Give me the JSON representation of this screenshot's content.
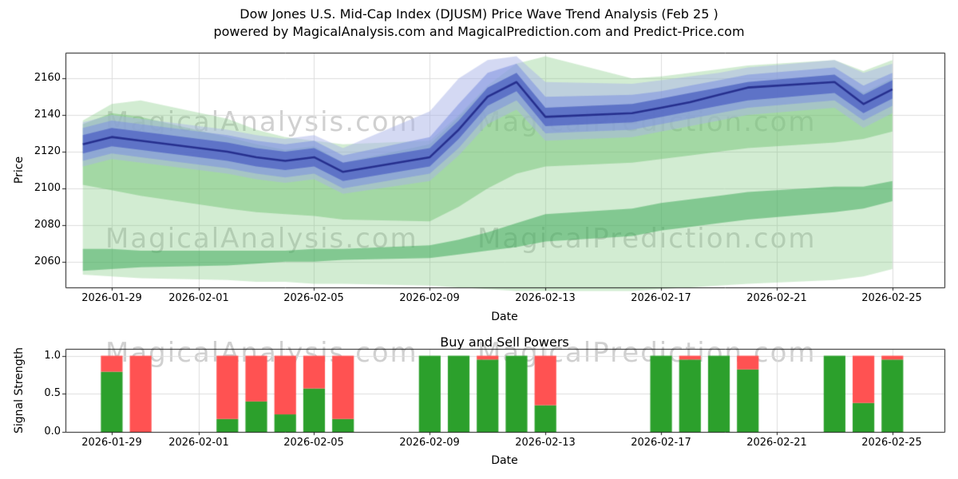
{
  "title": {
    "line1": "Dow Jones U.S. Mid-Cap Index (DJUSM) Price Wave Trend Analysis (Feb 25 )",
    "line2": "powered by MagicalAnalysis.com and MagicalPrediction.com and Predict-Price.com"
  },
  "watermarks": {
    "analysis": "MagicalAnalysis.com",
    "prediction": "MagicalPrediction.com"
  },
  "style": {
    "grid_color": "#dcdcdc",
    "frame_color": "#1a1a1a",
    "background": "#ffffff",
    "watermark_color": "rgba(150,150,150,0.45)"
  },
  "chart_data": [
    {
      "type": "area",
      "title": "",
      "xlabel": "Date",
      "ylabel": "Price",
      "legend": "none",
      "grid": true,
      "x_tick_labels": [
        "2026-01-29",
        "2026-02-01",
        "2026-02-05",
        "2026-02-09",
        "2026-02-13",
        "2026-02-17",
        "2026-02-21",
        "2026-02-25"
      ],
      "x_tick_days": [
        1,
        4,
        8,
        12,
        16,
        20,
        24,
        28
      ],
      "y_tick_labels": [
        "2160",
        "2140",
        "2120",
        "2100",
        "2080",
        "2060"
      ],
      "y_ticks": [
        2060,
        2080,
        2100,
        2120,
        2140,
        2160
      ],
      "xlim_days": [
        -0.6,
        29.8
      ],
      "ylim": [
        2046,
        2174
      ],
      "dates": [
        "2026-01-28",
        "2026-01-29",
        "2026-01-30",
        "2026-02-02",
        "2026-02-03",
        "2026-02-04",
        "2026-02-05",
        "2026-02-06",
        "2026-02-09",
        "2026-02-10",
        "2026-02-11",
        "2026-02-12",
        "2026-02-13",
        "2026-02-16",
        "2026-02-17",
        "2026-02-18",
        "2026-02-19",
        "2026-02-20",
        "2026-02-23",
        "2026-02-24",
        "2026-02-25"
      ],
      "day_offsets": [
        0,
        1,
        2,
        5,
        6,
        7,
        8,
        9,
        12,
        13,
        14,
        15,
        16,
        19,
        20,
        21,
        22,
        23,
        26,
        27,
        28
      ],
      "main_line": {
        "name": "trend-line",
        "color": "#262f8e",
        "values": [
          2124,
          2128,
          2126,
          2120,
          2117,
          2115,
          2117,
          2109,
          2117,
          2132,
          2150,
          2158,
          2139,
          2141,
          2144,
          2147,
          2151,
          2155,
          2158,
          2146,
          2154
        ]
      },
      "bands": [
        {
          "name": "green-fan-outer",
          "color": "#7fc97f",
          "alpha": 0.35,
          "lower": [
            2053,
            2052,
            2051,
            2050,
            2049,
            2049,
            2048,
            2048,
            2047,
            2046,
            2045,
            2044,
            2044,
            2044,
            2045,
            2046,
            2047,
            2048,
            2050,
            2052,
            2056
          ],
          "upper": [
            2137,
            2146,
            2148,
            2138,
            2132,
            2128,
            2126,
            2124,
            2126,
            2140,
            2156,
            2168,
            2172,
            2160,
            2161,
            2163,
            2165,
            2167,
            2170,
            2164,
            2170
          ]
        },
        {
          "name": "green-band-mid",
          "color": "#74c476",
          "alpha": 0.5,
          "lower": [
            2102,
            2099,
            2096,
            2089,
            2087,
            2086,
            2085,
            2083,
            2082,
            2090,
            2100,
            2108,
            2112,
            2114,
            2116,
            2118,
            2120,
            2122,
            2125,
            2127,
            2131
          ],
          "upper": [
            2135,
            2141,
            2139,
            2128,
            2124,
            2121,
            2123,
            2114,
            2124,
            2139,
            2155,
            2163,
            2144,
            2146,
            2149,
            2152,
            2155,
            2158,
            2162,
            2152,
            2160
          ]
        },
        {
          "name": "green-band-low",
          "color": "#41ab5d",
          "alpha": 0.55,
          "lower": [
            2055,
            2056,
            2057,
            2058,
            2059,
            2060,
            2060,
            2061,
            2062,
            2064,
            2066,
            2068,
            2071,
            2074,
            2077,
            2079,
            2081,
            2083,
            2087,
            2089,
            2093
          ],
          "upper": [
            2067,
            2067,
            2066,
            2066,
            2066,
            2066,
            2067,
            2067,
            2069,
            2072,
            2076,
            2081,
            2086,
            2089,
            2092,
            2094,
            2096,
            2098,
            2101,
            2101,
            2104
          ]
        },
        {
          "name": "blue-band-outer",
          "color": "#aab4e8",
          "alpha": 0.5,
          "lower": [
            2112,
            2116,
            2114,
            2108,
            2105,
            2103,
            2105,
            2097,
            2104,
            2118,
            2135,
            2143,
            2126,
            2128,
            2131,
            2134,
            2137,
            2140,
            2144,
            2133,
            2141
          ],
          "upper": [
            2136,
            2140,
            2138,
            2132,
            2129,
            2127,
            2129,
            2122,
            2142,
            2160,
            2170,
            2172,
            2158,
            2157,
            2159,
            2161,
            2163,
            2166,
            2170,
            2163,
            2168
          ]
        },
        {
          "name": "blue-band-mid",
          "color": "#7b8fe0",
          "alpha": 0.55,
          "lower": [
            2115,
            2119,
            2117,
            2111,
            2108,
            2106,
            2108,
            2100,
            2108,
            2122,
            2140,
            2148,
            2130,
            2132,
            2135,
            2138,
            2141,
            2144,
            2148,
            2137,
            2145
          ],
          "upper": [
            2133,
            2137,
            2135,
            2129,
            2126,
            2124,
            2126,
            2118,
            2128,
            2146,
            2163,
            2168,
            2150,
            2151,
            2153,
            2156,
            2159,
            2162,
            2166,
            2156,
            2163
          ]
        },
        {
          "name": "blue-band-inner",
          "color": "#4356c0",
          "alpha": 0.65,
          "lower": [
            2119,
            2123,
            2121,
            2115,
            2112,
            2110,
            2112,
            2104,
            2112,
            2127,
            2145,
            2153,
            2134,
            2136,
            2139,
            2142,
            2145,
            2148,
            2152,
            2141,
            2149
          ],
          "upper": [
            2129,
            2133,
            2131,
            2125,
            2122,
            2120,
            2122,
            2114,
            2122,
            2137,
            2155,
            2163,
            2144,
            2146,
            2149,
            2152,
            2155,
            2158,
            2162,
            2151,
            2159
          ]
        }
      ]
    },
    {
      "type": "bar",
      "title": "Buy and Sell Powers",
      "xlabel": "Date",
      "ylabel": "Signal Strength",
      "stacked": true,
      "grid": true,
      "x_tick_labels": [
        "2026-01-29",
        "2026-02-01",
        "2026-02-05",
        "2026-02-09",
        "2026-02-13",
        "2026-02-17",
        "2026-02-21",
        "2026-02-25"
      ],
      "x_tick_days": [
        1,
        4,
        8,
        12,
        16,
        20,
        24,
        28
      ],
      "y_tick_labels": [
        "1.0",
        "0.5",
        "0.0"
      ],
      "y_ticks": [
        0,
        0.5,
        1
      ],
      "xlim_days": [
        -0.6,
        29.8
      ],
      "ylim": [
        0,
        1.09
      ],
      "dates": [
        "2026-01-28",
        "2026-01-29",
        "2026-01-30",
        "2026-02-02",
        "2026-02-03",
        "2026-02-04",
        "2026-02-05",
        "2026-02-06",
        "2026-02-09",
        "2026-02-10",
        "2026-02-11",
        "2026-02-12",
        "2026-02-13",
        "2026-02-16",
        "2026-02-17",
        "2026-02-18",
        "2026-02-19",
        "2026-02-20",
        "2026-02-23",
        "2026-02-24",
        "2026-02-25"
      ],
      "day_offsets": [
        0,
        1,
        2,
        5,
        6,
        7,
        8,
        9,
        12,
        13,
        14,
        15,
        16,
        19,
        20,
        21,
        22,
        23,
        26,
        27,
        28
      ],
      "series": [
        {
          "name": "Buy",
          "color": "#2ca02c",
          "values": [
            0,
            0.79,
            0,
            0.17,
            0.4,
            0.23,
            0.57,
            0.17,
            1.0,
            1.0,
            0.95,
            1.0,
            0.35,
            0,
            1.0,
            0.95,
            1.0,
            0.82,
            1.0,
            0.38,
            0.95
          ]
        },
        {
          "name": "Sell",
          "color": "#ff5252",
          "values": [
            0,
            0.21,
            1.0,
            0.83,
            0.6,
            0.77,
            0.43,
            0.83,
            0,
            0,
            0.05,
            0,
            0.65,
            0,
            0,
            0.05,
            0,
            0.18,
            0,
            0.62,
            0.05
          ]
        }
      ]
    }
  ]
}
